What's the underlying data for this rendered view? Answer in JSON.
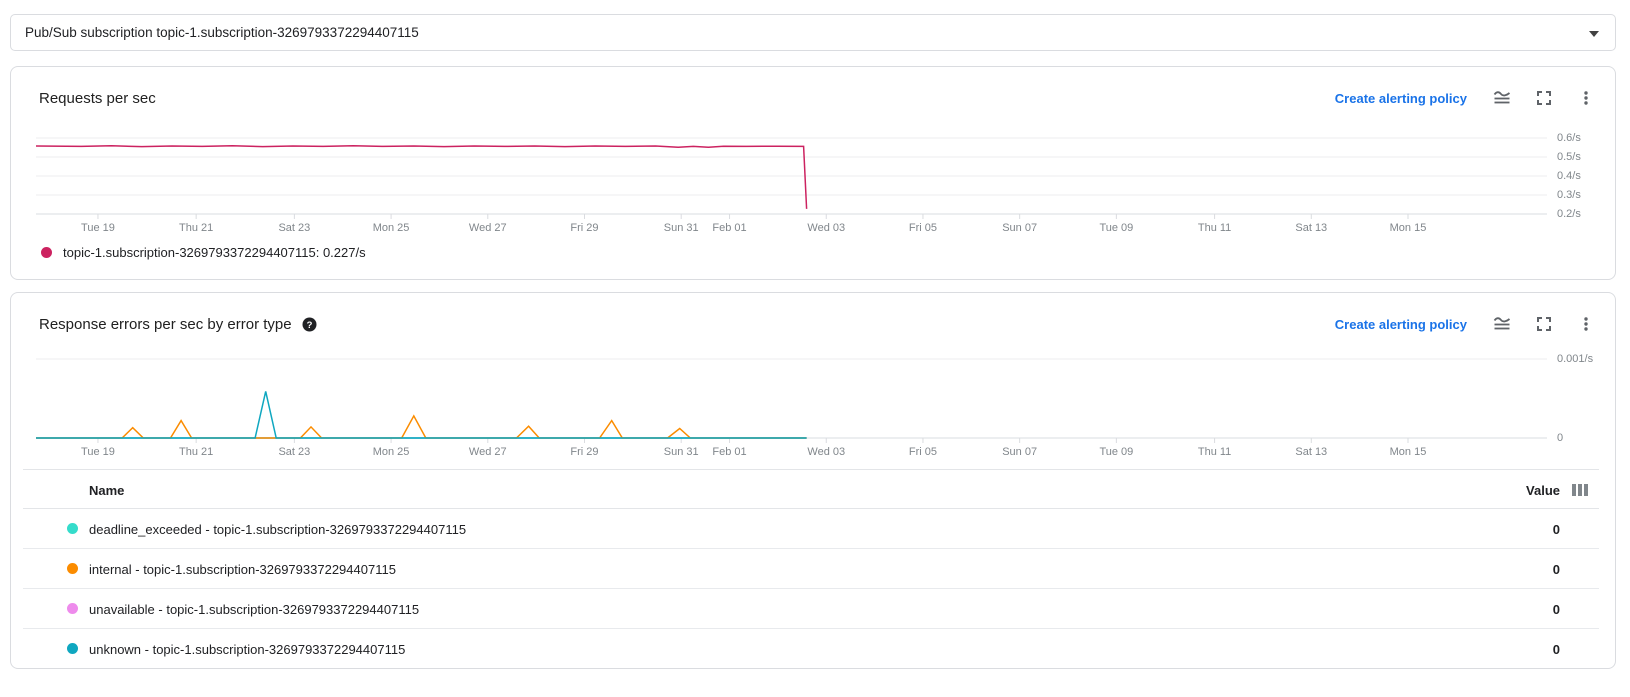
{
  "selector": {
    "value": "Pub/Sub subscription topic-1.subscription-3269793372294407115"
  },
  "cards": [
    {
      "title": "Requests per sec",
      "alert_link": "Create alerting policy",
      "legend": {
        "label": "topic-1.subscription-3269793372294407115: 0.227/s",
        "color": "#CC2260"
      }
    },
    {
      "title": "Response errors per sec by error type",
      "alert_link": "Create alerting policy"
    }
  ],
  "error_table": {
    "name_header": "Name",
    "value_header": "Value",
    "rows": [
      {
        "color": "#35DCCB",
        "name": "deadline_exceeded - topic-1.subscription-3269793372294407115",
        "value": "0"
      },
      {
        "color": "#FB8C00",
        "name": "internal - topic-1.subscription-3269793372294407115",
        "value": "0"
      },
      {
        "color": "#EE8BEC",
        "name": "unavailable - topic-1.subscription-3269793372294407115",
        "value": "0"
      },
      {
        "color": "#0FA7C0",
        "name": "unknown - topic-1.subscription-3269793372294407115",
        "value": "0"
      }
    ]
  },
  "chart_data": [
    {
      "type": "line",
      "title": "Requests per sec",
      "ylabel_position": "right",
      "grid": true,
      "ylim": [
        0.2,
        0.637
      ],
      "y_grid": [
        {
          "v": 0.6,
          "label": "0.6/s"
        },
        {
          "v": 0.5,
          "label": "0.5/s"
        },
        {
          "v": 0.4,
          "label": "0.4/s"
        },
        {
          "v": 0.3,
          "label": "0.3/s"
        },
        {
          "v": 0.2,
          "label": "0.2/s"
        }
      ],
      "x_ticks": [
        {
          "f": 0.041,
          "label": "Tue 19"
        },
        {
          "f": 0.106,
          "label": "Thu 21"
        },
        {
          "f": 0.171,
          "label": "Sat 23"
        },
        {
          "f": 0.235,
          "label": "Mon 25"
        },
        {
          "f": 0.299,
          "label": "Wed 27"
        },
        {
          "f": 0.363,
          "label": "Fri 29"
        },
        {
          "f": 0.427,
          "label": "Sun 31"
        },
        {
          "f": 0.459,
          "label": "Feb 01"
        },
        {
          "f": 0.523,
          "label": "Wed 03"
        },
        {
          "f": 0.587,
          "label": "Fri 05"
        },
        {
          "f": 0.651,
          "label": "Sun 07"
        },
        {
          "f": 0.715,
          "label": "Tue 09"
        },
        {
          "f": 0.78,
          "label": "Thu 11"
        },
        {
          "f": 0.844,
          "label": "Sat 13"
        },
        {
          "f": 0.908,
          "label": "Mon 15"
        }
      ],
      "series": [
        {
          "name": "topic-1.subscription-3269793372294407115",
          "color": "#CC2260",
          "current": "0.227/s",
          "z": 0,
          "points": [
            [
              0,
              0.558
            ],
            [
              0.03,
              0.556
            ],
            [
              0.05,
              0.559
            ],
            [
              0.07,
              0.555
            ],
            [
              0.09,
              0.558
            ],
            [
              0.11,
              0.556
            ],
            [
              0.13,
              0.559
            ],
            [
              0.15,
              0.555
            ],
            [
              0.17,
              0.558
            ],
            [
              0.19,
              0.556
            ],
            [
              0.21,
              0.559
            ],
            [
              0.23,
              0.556
            ],
            [
              0.25,
              0.558
            ],
            [
              0.27,
              0.555
            ],
            [
              0.29,
              0.558
            ],
            [
              0.31,
              0.556
            ],
            [
              0.33,
              0.558
            ],
            [
              0.35,
              0.555
            ],
            [
              0.37,
              0.558
            ],
            [
              0.39,
              0.556
            ],
            [
              0.41,
              0.558
            ],
            [
              0.425,
              0.551
            ],
            [
              0.435,
              0.556
            ],
            [
              0.445,
              0.551
            ],
            [
              0.455,
              0.557
            ],
            [
              0.47,
              0.556
            ],
            [
              0.49,
              0.557
            ],
            [
              0.508,
              0.556
            ],
            [
              0.51,
              0.227
            ]
          ]
        }
      ]
    },
    {
      "type": "line",
      "title": "Response errors per sec by error type",
      "ylabel_position": "right",
      "grid": true,
      "ylim": [
        0,
        0.00119
      ],
      "y_grid": [
        {
          "v": 0.001,
          "label": "0.001/s"
        },
        {
          "v": 0,
          "label": "0"
        }
      ],
      "x_ticks": [
        {
          "f": 0.041,
          "label": "Tue 19"
        },
        {
          "f": 0.106,
          "label": "Thu 21"
        },
        {
          "f": 0.171,
          "label": "Sat 23"
        },
        {
          "f": 0.235,
          "label": "Mon 25"
        },
        {
          "f": 0.299,
          "label": "Wed 27"
        },
        {
          "f": 0.363,
          "label": "Fri 29"
        },
        {
          "f": 0.427,
          "label": "Sun 31"
        },
        {
          "f": 0.459,
          "label": "Feb 01"
        },
        {
          "f": 0.523,
          "label": "Wed 03"
        },
        {
          "f": 0.587,
          "label": "Fri 05"
        },
        {
          "f": 0.651,
          "label": "Sun 07"
        },
        {
          "f": 0.715,
          "label": "Tue 09"
        },
        {
          "f": 0.78,
          "label": "Thu 11"
        },
        {
          "f": 0.844,
          "label": "Sat 13"
        },
        {
          "f": 0.908,
          "label": "Mon 15"
        }
      ],
      "series": [
        {
          "name": "deadline_exceeded - topic-1.subscription-3269793372294407115",
          "color": "#35DCCB",
          "z": 1,
          "points": [
            [
              0,
              0
            ],
            [
              0.51,
              0
            ]
          ]
        },
        {
          "name": "internal - topic-1.subscription-3269793372294407115",
          "color": "#FB8C00",
          "z": 2,
          "points": [
            [
              0,
              0
            ],
            [
              0.057,
              0
            ],
            [
              0.064,
              0.00013
            ],
            [
              0.071,
              0
            ],
            [
              0.089,
              0
            ],
            [
              0.096,
              0.00022
            ],
            [
              0.103,
              0
            ],
            [
              0.175,
              0
            ],
            [
              0.182,
              0.00014
            ],
            [
              0.189,
              0
            ],
            [
              0.242,
              0
            ],
            [
              0.25,
              0.00028
            ],
            [
              0.258,
              0
            ],
            [
              0.318,
              0
            ],
            [
              0.326,
              0.00015
            ],
            [
              0.333,
              0
            ],
            [
              0.373,
              0
            ],
            [
              0.381,
              0.00022
            ],
            [
              0.388,
              0
            ],
            [
              0.418,
              0
            ],
            [
              0.426,
              0.00012
            ],
            [
              0.433,
              0
            ],
            [
              0.51,
              0
            ]
          ]
        },
        {
          "name": "unavailable - topic-1.subscription-3269793372294407115",
          "color": "#EE8BEC",
          "z": 0,
          "points": [
            [
              0,
              0
            ],
            [
              0.51,
              0
            ]
          ]
        },
        {
          "name": "unknown - topic-1.subscription-3269793372294407115",
          "color": "#0FA7C0",
          "z": 3,
          "points": [
            [
              0,
              0
            ],
            [
              0.145,
              0
            ],
            [
              0.152,
              0.00059
            ],
            [
              0.159,
              0
            ],
            [
              0.51,
              0
            ]
          ]
        }
      ]
    }
  ]
}
